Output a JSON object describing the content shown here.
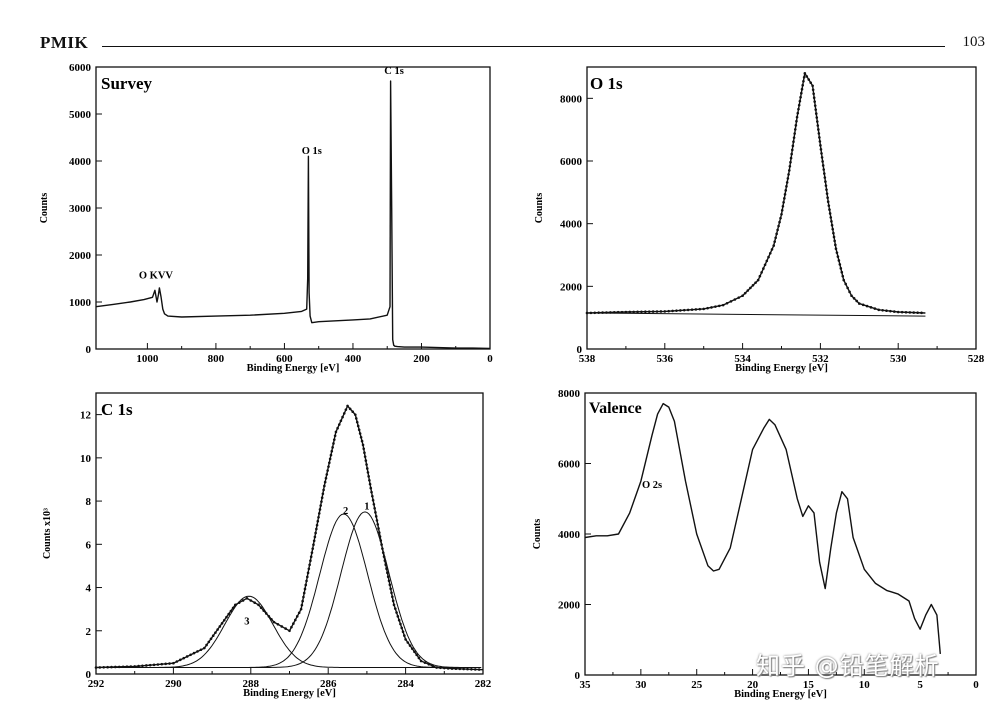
{
  "page": {
    "journal": "PMIK",
    "page_number": "103",
    "watermark": "知乎 @铅笔解析"
  },
  "chart_data": [
    {
      "type": "line",
      "title": "Survey",
      "xlabel": "Binding Energy [eV]",
      "ylabel": "Counts",
      "xlim": [
        1150,
        0
      ],
      "ylim": [
        0,
        6000
      ],
      "x_ticks": [
        "1000",
        "800",
        "600",
        "400",
        "200",
        "0"
      ],
      "x_tick_values": [
        1000,
        800,
        600,
        400,
        200,
        0
      ],
      "y_ticks": [
        "0",
        "1000",
        "2000",
        "3000",
        "4000",
        "5000",
        "6000"
      ],
      "y_tick_values": [
        0,
        1000,
        2000,
        3000,
        4000,
        5000,
        6000
      ],
      "series": [
        {
          "x": [
            1150,
            1100,
            1050,
            1010,
            985,
            978,
            972,
            968,
            965,
            960,
            955,
            950,
            940,
            900,
            800,
            700,
            600,
            550,
            535,
            532,
            530,
            528,
            525,
            520,
            500,
            450,
            400,
            350,
            300,
            292,
            290,
            287,
            284,
            281,
            278,
            270,
            250,
            200,
            150,
            100,
            50,
            0
          ],
          "y": [
            900,
            950,
            1000,
            1050,
            1100,
            1250,
            1000,
            1150,
            1300,
            1100,
            850,
            750,
            700,
            680,
            700,
            720,
            760,
            800,
            850,
            1500,
            4100,
            1200,
            700,
            560,
            580,
            600,
            620,
            640,
            720,
            900,
            5700,
            3000,
            200,
            80,
            60,
            50,
            40,
            40,
            30,
            20,
            20,
            10
          ]
        }
      ],
      "annotations": [
        {
          "text": "O KVV",
          "x": 975,
          "y": 1500
        },
        {
          "text": "O 1s",
          "x": 520,
          "y": 4150
        },
        {
          "text": "C 1s",
          "x": 280,
          "y": 5850
        }
      ]
    },
    {
      "type": "line",
      "title": "O 1s",
      "xlabel": "Binding Energy [eV]",
      "ylabel": "Counts",
      "xlim": [
        538,
        528
      ],
      "ylim": [
        0,
        9000
      ],
      "x_ticks": [
        "538",
        "536",
        "534",
        "532",
        "530",
        "528"
      ],
      "x_tick_values": [
        538,
        536,
        534,
        532,
        530,
        528
      ],
      "y_ticks": [
        "0",
        "2000",
        "4000",
        "6000",
        "8000"
      ],
      "y_tick_values": [
        0,
        2000,
        4000,
        6000,
        8000
      ],
      "series": [
        {
          "x": [
            538,
            537,
            536,
            535,
            534.5,
            534,
            533.6,
            533.2,
            533,
            532.8,
            532.6,
            532.4,
            532.2,
            532,
            531.8,
            531.6,
            531.4,
            531.2,
            531,
            530.5,
            530,
            529.3
          ],
          "y": [
            1150,
            1180,
            1200,
            1280,
            1400,
            1700,
            2200,
            3300,
            4300,
            5700,
            7400,
            8800,
            8400,
            6500,
            4700,
            3200,
            2200,
            1700,
            1450,
            1250,
            1180,
            1150
          ]
        }
      ],
      "background": {
        "x": [
          538,
          529.3
        ],
        "y": [
          1150,
          1050
        ]
      }
    },
    {
      "type": "line",
      "title": "C 1s",
      "xlabel": "Binding Energy [eV]",
      "ylabel": "Counts x10³",
      "xlim": [
        292,
        282
      ],
      "ylim": [
        0,
        13
      ],
      "x_ticks": [
        "292",
        "290",
        "288",
        "286",
        "284",
        "282"
      ],
      "x_tick_values": [
        292,
        290,
        288,
        286,
        284,
        282
      ],
      "y_ticks": [
        "0",
        "2",
        "4",
        "6",
        "8",
        "10",
        "12"
      ],
      "y_tick_values": [
        0,
        2,
        4,
        6,
        8,
        10,
        12
      ],
      "series": [
        {
          "x": [
            292,
            291,
            290,
            289.2,
            288.8,
            288.4,
            288.1,
            287.8,
            287.4,
            287,
            286.7,
            286.4,
            286.1,
            285.8,
            285.5,
            285.3,
            285.1,
            284.9,
            284.6,
            284.3,
            284,
            283.6,
            283.2,
            282.8,
            282
          ],
          "y": [
            0.3,
            0.35,
            0.5,
            1.2,
            2.2,
            3.2,
            3.5,
            3.2,
            2.4,
            2.0,
            3.0,
            5.8,
            8.7,
            11.2,
            12.4,
            12.0,
            10.6,
            8.6,
            5.8,
            3.2,
            1.6,
            0.6,
            0.3,
            0.25,
            0.2
          ]
        }
      ],
      "components": [
        {
          "name": "1",
          "center": 285.05,
          "amplitude": 7.2
        },
        {
          "name": "2",
          "center": 285.6,
          "amplitude": 7.1
        },
        {
          "name": "3",
          "center": 288.05,
          "amplitude": 3.3
        }
      ],
      "annotations": [
        {
          "text": "1",
          "x": 285.0,
          "y": 7.6
        },
        {
          "text": "2",
          "x": 285.55,
          "y": 7.4
        },
        {
          "text": "3",
          "x": 288.1,
          "y": 2.3
        }
      ]
    },
    {
      "type": "line",
      "title": "Valence",
      "xlabel": "Binding Energy [eV]",
      "ylabel": "Counts",
      "xlim": [
        35,
        0
      ],
      "ylim": [
        0,
        8000
      ],
      "x_ticks": [
        "35",
        "30",
        "25",
        "20",
        "15",
        "10",
        "5",
        "0"
      ],
      "x_tick_values": [
        35,
        30,
        25,
        20,
        15,
        10,
        5,
        0
      ],
      "y_ticks": [
        "0",
        "2000",
        "4000",
        "6000",
        "8000"
      ],
      "y_tick_values": [
        0,
        2000,
        4000,
        6000,
        8000
      ],
      "series": [
        {
          "x": [
            35,
            34,
            33,
            32,
            31,
            30,
            29,
            28.5,
            28,
            27.5,
            27,
            26,
            25,
            24,
            23.5,
            23,
            22,
            21,
            20,
            19,
            18.5,
            18,
            17,
            16,
            15.5,
            15,
            14.5,
            14,
            13.5,
            13,
            12.5,
            12,
            11.5,
            11,
            10,
            9,
            8,
            7,
            6,
            5.5,
            5,
            4.5,
            4,
            3.5,
            3.2
          ],
          "y": [
            3900,
            3950,
            3950,
            4000,
            4600,
            5500,
            6800,
            7400,
            7700,
            7600,
            7200,
            5500,
            4000,
            3100,
            2950,
            3000,
            3600,
            5000,
            6400,
            7000,
            7250,
            7100,
            6400,
            5000,
            4500,
            4800,
            4600,
            3200,
            2450,
            3600,
            4600,
            5200,
            5000,
            3900,
            3000,
            2600,
            2400,
            2300,
            2100,
            1600,
            1300,
            1700,
            2000,
            1700,
            600
          ]
        }
      ],
      "annotations": [
        {
          "text": "O 2s",
          "x": 29,
          "y": 5300
        }
      ]
    }
  ]
}
